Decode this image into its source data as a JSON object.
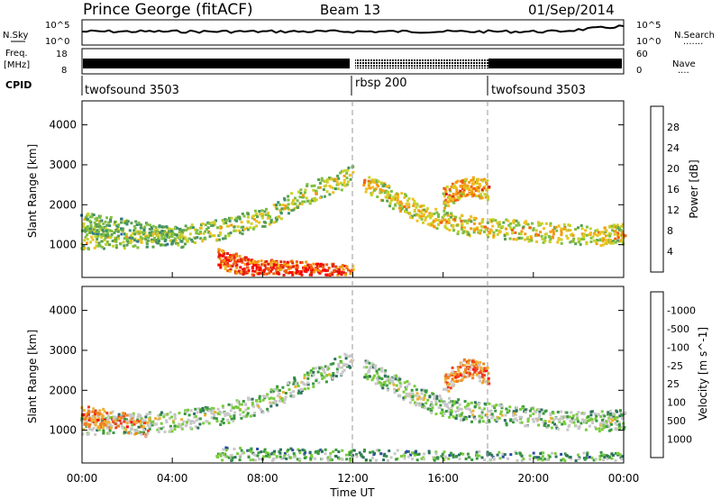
{
  "header": {
    "station": "Prince George (fitACF)",
    "beam": "Beam 13",
    "date": "01/Sep/2014"
  },
  "strips": {
    "nsky_label": "N.Sky",
    "nsearch_label": "N.Search",
    "nsearch_dots": ".......",
    "nsky_ticks": [
      "10^5",
      "10^0"
    ],
    "nsearch_ticks": [
      "10^5",
      "10^0"
    ],
    "freq_label_1": "Freq.",
    "freq_label_2": "[MHz]",
    "freq_ticks": [
      "18",
      "8"
    ],
    "nave_label": "Nave",
    "nave_dots": "....",
    "nave_ticks": [
      "60",
      "0"
    ],
    "cpid_label": "CPID",
    "cpid_segments": [
      "twofsound 3503",
      "rbsp 200",
      "twofsound 3503"
    ]
  },
  "colors": {
    "power_scale": [
      "#1a1aff",
      "#2346c8",
      "#2f6fa0",
      "#3f8f6b",
      "#5aa050",
      "#7fbf3f",
      "#c8d22a",
      "#f0c020",
      "#f59a10",
      "#f06010",
      "#e02010",
      "#ff0000"
    ],
    "velocity_scale": [
      "#1a1aff",
      "#2a4aa8",
      "#2e7060",
      "#3a9a40",
      "#7acc3c",
      "#c8c8c8",
      "#c8c8c8",
      "#f0b030",
      "#f08020",
      "#f04020",
      "#ff0000"
    ]
  },
  "chart_data": [
    {
      "type": "heatmap",
      "panel": "power",
      "ylabel": "Slant Range [km]",
      "yticks": [
        1000,
        2000,
        3000,
        4000
      ],
      "ylim": [
        180,
        4600
      ],
      "xlim": [
        0,
        24
      ],
      "xticks": [
        "00:00",
        "04:00",
        "08:00",
        "12:00",
        "16:00",
        "20:00",
        "00:00"
      ],
      "xlabel": "Time UT",
      "colorbar": {
        "label": "Power [dB]",
        "ticks": [
          4,
          8,
          12,
          16,
          20,
          24,
          28
        ]
      },
      "features": [
        {
          "t": [
            0,
            2,
            4,
            6,
            8,
            10,
            12
          ],
          "r": [
            1150,
            1200,
            1250,
            1400,
            1700,
            2300,
            2800
          ],
          "level": 6
        },
        {
          "t": [
            0,
            1,
            3,
            4.5
          ],
          "r": [
            1600,
            1500,
            1300,
            1200
          ],
          "level": 5
        },
        {
          "t": [
            6,
            7,
            8,
            9,
            10,
            11,
            12
          ],
          "r": [
            700,
            500,
            400,
            380,
            360,
            300,
            250
          ],
          "level": 10
        },
        {
          "t": [
            12.5,
            14,
            15.5,
            17,
            19,
            21,
            23,
            24
          ],
          "r": [
            2600,
            2100,
            1700,
            1500,
            1400,
            1300,
            1250,
            1300
          ],
          "level": 7
        },
        {
          "t": [
            16,
            17,
            18
          ],
          "r": [
            2200,
            2500,
            2400
          ],
          "level": 8
        }
      ]
    },
    {
      "type": "heatmap",
      "panel": "velocity",
      "ylabel": "Slant Range [km]",
      "yticks": [
        1000,
        2000,
        3000,
        4000
      ],
      "ylim": [
        180,
        4600
      ],
      "xlim": [
        0,
        24
      ],
      "xticks": [
        "00:00",
        "04:00",
        "08:00",
        "12:00",
        "16:00",
        "20:00",
        "00:00"
      ],
      "xlabel": "Time UT",
      "colorbar": {
        "label": "Velocity [m s^-1]",
        "ticks": [
          "1000",
          "500",
          "100",
          "25",
          "-25",
          "-100",
          "-500",
          "-1000"
        ]
      },
      "features": [
        {
          "t": [
            0,
            2,
            4,
            6,
            8,
            10,
            12
          ],
          "r": [
            1150,
            1200,
            1250,
            1400,
            1700,
            2300,
            2800
          ],
          "level": 5
        },
        {
          "t": [
            0,
            1,
            3
          ],
          "r": [
            1400,
            1300,
            1100
          ],
          "level": 8
        },
        {
          "t": [
            6,
            8,
            10,
            12,
            14,
            16,
            18,
            20,
            22,
            24
          ],
          "r": [
            350,
            330,
            320,
            300,
            280,
            260,
            250,
            240,
            230,
            220
          ],
          "level": 4
        },
        {
          "t": [
            12.5,
            14,
            15.5,
            17,
            19,
            21,
            23,
            24
          ],
          "r": [
            2600,
            2100,
            1700,
            1500,
            1400,
            1300,
            1250,
            1300
          ],
          "level": 5
        },
        {
          "t": [
            16,
            17,
            18
          ],
          "r": [
            2200,
            2600,
            2400
          ],
          "level": 8
        }
      ]
    }
  ]
}
